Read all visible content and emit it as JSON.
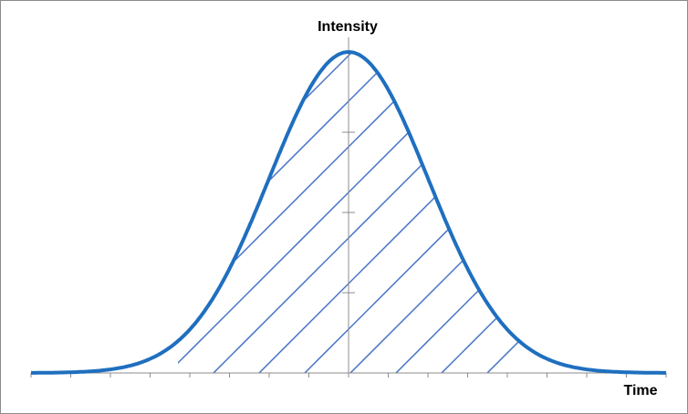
{
  "chart_data": {
    "type": "area",
    "title": "",
    "ylabel": "Intensity",
    "xlabel": "Time",
    "curve": "gaussian",
    "x": [
      -4,
      -3.5,
      -3,
      -2.5,
      -2,
      -1.5,
      -1,
      -0.5,
      0,
      0.5,
      1,
      1.5,
      2,
      2.5,
      3,
      3.5,
      4
    ],
    "y": [
      0.0003,
      0.0022,
      0.0111,
      0.0439,
      0.1353,
      0.3247,
      0.6065,
      0.8825,
      1.0,
      0.8825,
      0.6065,
      0.3247,
      0.1353,
      0.0439,
      0.0111,
      0.0022,
      0.0003
    ],
    "xlim": [
      -4,
      4
    ],
    "ylim": [
      0,
      1
    ],
    "fill": "diagonal-hatch",
    "hatched_x_range": [
      -2.15,
      2.15
    ],
    "grid": false,
    "legend": "none",
    "colors": {
      "curve": "#1f6fbf",
      "hatch": "#4472c4",
      "axis": "#8c8c8c"
    }
  }
}
